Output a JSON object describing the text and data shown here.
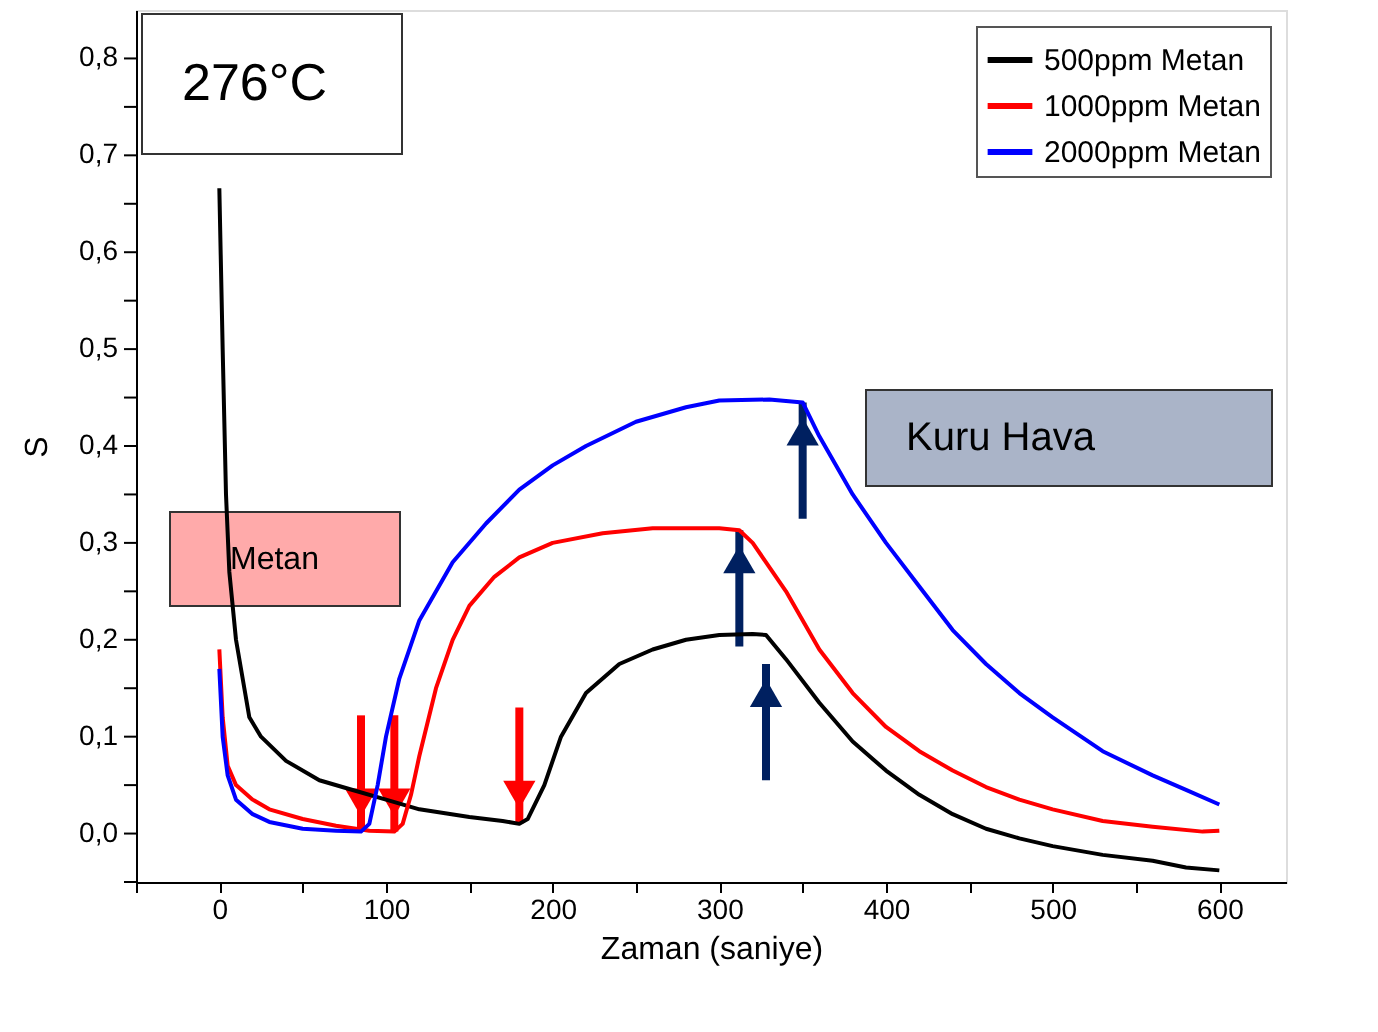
{
  "chart_data": {
    "type": "line",
    "xlabel": "Zaman (saniye)",
    "ylabel": "S",
    "annotations": [
      "276°C",
      "Metan",
      "Kuru Hava"
    ],
    "xlim": [
      -50,
      640
    ],
    "ylim": [
      -0.05,
      0.85
    ],
    "xticks": [
      0,
      100,
      200,
      300,
      400,
      500,
      600,
      {
        "value": -50,
        "label": null
      },
      {
        "value": 50,
        "label": null
      },
      {
        "value": 150,
        "label": null
      },
      {
        "value": 250,
        "label": null
      },
      {
        "value": 350,
        "label": null
      },
      {
        "value": 450,
        "label": null
      },
      {
        "value": 550,
        "label": null
      }
    ],
    "yticks": [
      {
        "value": 0,
        "label": "0,0"
      },
      {
        "value": 0.1,
        "label": "0,1"
      },
      {
        "value": 0.2,
        "label": "0,2"
      },
      {
        "value": 0.3,
        "label": "0,3"
      },
      {
        "value": 0.4,
        "label": "0,4"
      },
      {
        "value": 0.5,
        "label": "0,5"
      },
      {
        "value": 0.6,
        "label": "0,6"
      },
      {
        "value": 0.7,
        "label": "0,7"
      },
      {
        "value": 0.8,
        "label": "0,8"
      },
      {
        "value": -0.05,
        "label": null
      },
      {
        "value": 0.05,
        "label": null
      },
      {
        "value": 0.15,
        "label": null
      },
      {
        "value": 0.25,
        "label": null
      },
      {
        "value": 0.35,
        "label": null
      },
      {
        "value": 0.45,
        "label": null
      },
      {
        "value": 0.55,
        "label": null
      },
      {
        "value": 0.65,
        "label": null
      },
      {
        "value": 0.75,
        "label": null
      }
    ],
    "grid": false,
    "legend": "top right",
    "marker": "none",
    "line_style": "solid",
    "series": [
      {
        "name": "500ppm Metan",
        "color": "#000000",
        "x": [
          0,
          2,
          4,
          6,
          10,
          15,
          18,
          25,
          40,
          60,
          80,
          100,
          120,
          150,
          170,
          180,
          185,
          195,
          205,
          220,
          240,
          260,
          280,
          300,
          320,
          328,
          340,
          360,
          380,
          400,
          420,
          440,
          460,
          480,
          500,
          530,
          560,
          580,
          600
        ],
        "values": [
          0.666,
          0.5,
          0.35,
          0.27,
          0.2,
          0.15,
          0.12,
          0.1,
          0.075,
          0.055,
          0.045,
          0.035,
          0.025,
          0.017,
          0.013,
          0.01,
          0.015,
          0.05,
          0.1,
          0.145,
          0.175,
          0.19,
          0.2,
          0.205,
          0.206,
          0.205,
          0.18,
          0.135,
          0.095,
          0.065,
          0.04,
          0.02,
          0.005,
          -0.005,
          -0.013,
          -0.022,
          -0.028,
          -0.035,
          -0.038
        ]
      },
      {
        "name": "1000ppm Metan",
        "color": "#ff0000",
        "x": [
          0,
          2,
          5,
          10,
          20,
          30,
          50,
          70,
          90,
          105,
          110,
          115,
          120,
          130,
          140,
          150,
          165,
          180,
          200,
          230,
          260,
          300,
          312,
          320,
          340,
          360,
          380,
          400,
          420,
          440,
          460,
          480,
          500,
          530,
          560,
          590,
          600
        ],
        "values": [
          0.19,
          0.12,
          0.07,
          0.05,
          0.035,
          0.025,
          0.015,
          0.008,
          0.003,
          0.002,
          0.01,
          0.04,
          0.08,
          0.15,
          0.2,
          0.235,
          0.265,
          0.285,
          0.3,
          0.31,
          0.315,
          0.315,
          0.313,
          0.3,
          0.25,
          0.19,
          0.145,
          0.11,
          0.085,
          0.065,
          0.048,
          0.035,
          0.025,
          0.013,
          0.007,
          0.002,
          0.003
        ]
      },
      {
        "name": "2000ppm Metan",
        "color": "#0000ff",
        "x": [
          0,
          2,
          5,
          10,
          20,
          30,
          50,
          70,
          85,
          90,
          95,
          100,
          108,
          120,
          140,
          160,
          180,
          200,
          220,
          250,
          280,
          300,
          330,
          350,
          360,
          380,
          400,
          420,
          440,
          460,
          480,
          500,
          530,
          560,
          580,
          600
        ],
        "values": [
          0.17,
          0.1,
          0.06,
          0.035,
          0.02,
          0.012,
          0.005,
          0.003,
          0.002,
          0.01,
          0.05,
          0.1,
          0.16,
          0.22,
          0.28,
          0.32,
          0.355,
          0.38,
          0.4,
          0.425,
          0.44,
          0.447,
          0.448,
          0.445,
          0.41,
          0.35,
          0.3,
          0.255,
          0.21,
          0.175,
          0.145,
          0.12,
          0.085,
          0.06,
          0.045,
          0.03
        ]
      }
    ]
  }
}
